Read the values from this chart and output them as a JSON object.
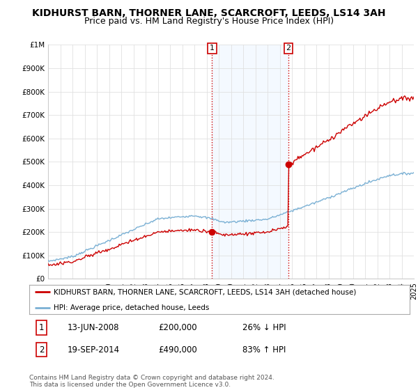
{
  "title": "KIDHURST BARN, THORNER LANE, SCARCROFT, LEEDS, LS14 3AH",
  "subtitle": "Price paid vs. HM Land Registry's House Price Index (HPI)",
  "title_fontsize": 10,
  "subtitle_fontsize": 9,
  "background_color": "#ffffff",
  "grid_color": "#e0e0e0",
  "ylim": [
    0,
    1000000
  ],
  "yticks": [
    0,
    100000,
    200000,
    300000,
    400000,
    500000,
    600000,
    700000,
    800000,
    900000,
    1000000
  ],
  "ytick_labels": [
    "£0",
    "£100K",
    "£200K",
    "£300K",
    "£400K",
    "£500K",
    "£600K",
    "£700K",
    "£800K",
    "£900K",
    "£1M"
  ],
  "hpi_color": "#7ab0d4",
  "price_color": "#cc0000",
  "purchase1_date": 2008.45,
  "purchase1_price": 200000,
  "purchase1_label": "1",
  "purchase2_date": 2014.72,
  "purchase2_price": 490000,
  "purchase2_label": "2",
  "vline_color": "#cc0000",
  "shade_color": "#ddeeff",
  "legend_house_label": "KIDHURST BARN, THORNER LANE, SCARCROFT, LEEDS, LS14 3AH (detached house)",
  "legend_hpi_label": "HPI: Average price, detached house, Leeds",
  "table_row1": [
    "1",
    "13-JUN-2008",
    "£200,000",
    "26% ↓ HPI"
  ],
  "table_row2": [
    "2",
    "19-SEP-2014",
    "£490,000",
    "83% ↑ HPI"
  ],
  "footnote": "Contains HM Land Registry data © Crown copyright and database right 2024.\nThis data is licensed under the Open Government Licence v3.0.",
  "xmin": 1995,
  "xmax": 2025
}
